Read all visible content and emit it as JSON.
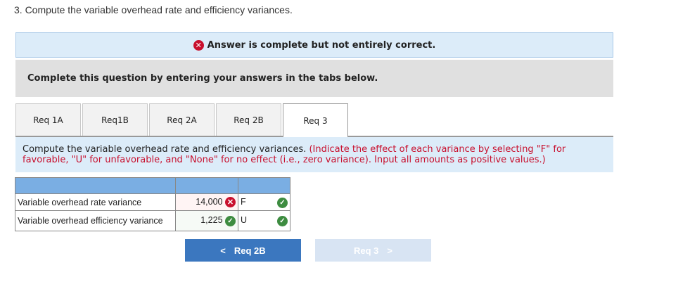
{
  "question": "3. Compute the variable overhead rate and efficiency variances.",
  "banner": {
    "text": "Answer is complete but not entirely correct.",
    "icon": "x-circle-icon"
  },
  "instructions_header": "Complete this question by entering your answers in the tabs below.",
  "tabs": [
    {
      "label": "Req 1A"
    },
    {
      "label": "Req1B"
    },
    {
      "label": "Req 2A"
    },
    {
      "label": "Req 2B"
    },
    {
      "label": "Req 3",
      "active": true
    }
  ],
  "instruction": {
    "main": "Compute the variable overhead rate and efficiency variances.",
    "note": "(Indicate the effect of each variance by selecting \"F\" for favorable, \"U\" for unfavorable, and \"None\" for no effect (i.e., zero variance). Input all amounts as positive values.)"
  },
  "table": {
    "rows": [
      {
        "label": "Variable overhead rate variance",
        "amount": "14,000",
        "amount_status": "incorrect",
        "effect": "F",
        "effect_status": "correct"
      },
      {
        "label": "Variable overhead efficiency variance",
        "amount": "1,225",
        "amount_status": "correct",
        "effect": "U",
        "effect_status": "correct"
      }
    ]
  },
  "nav": {
    "prev": "Req 2B",
    "next": "Req 3"
  },
  "colors": {
    "accent": "#3b77bf",
    "header": "#7aaee3",
    "error": "#c8102e",
    "ok": "#3d8c40"
  }
}
